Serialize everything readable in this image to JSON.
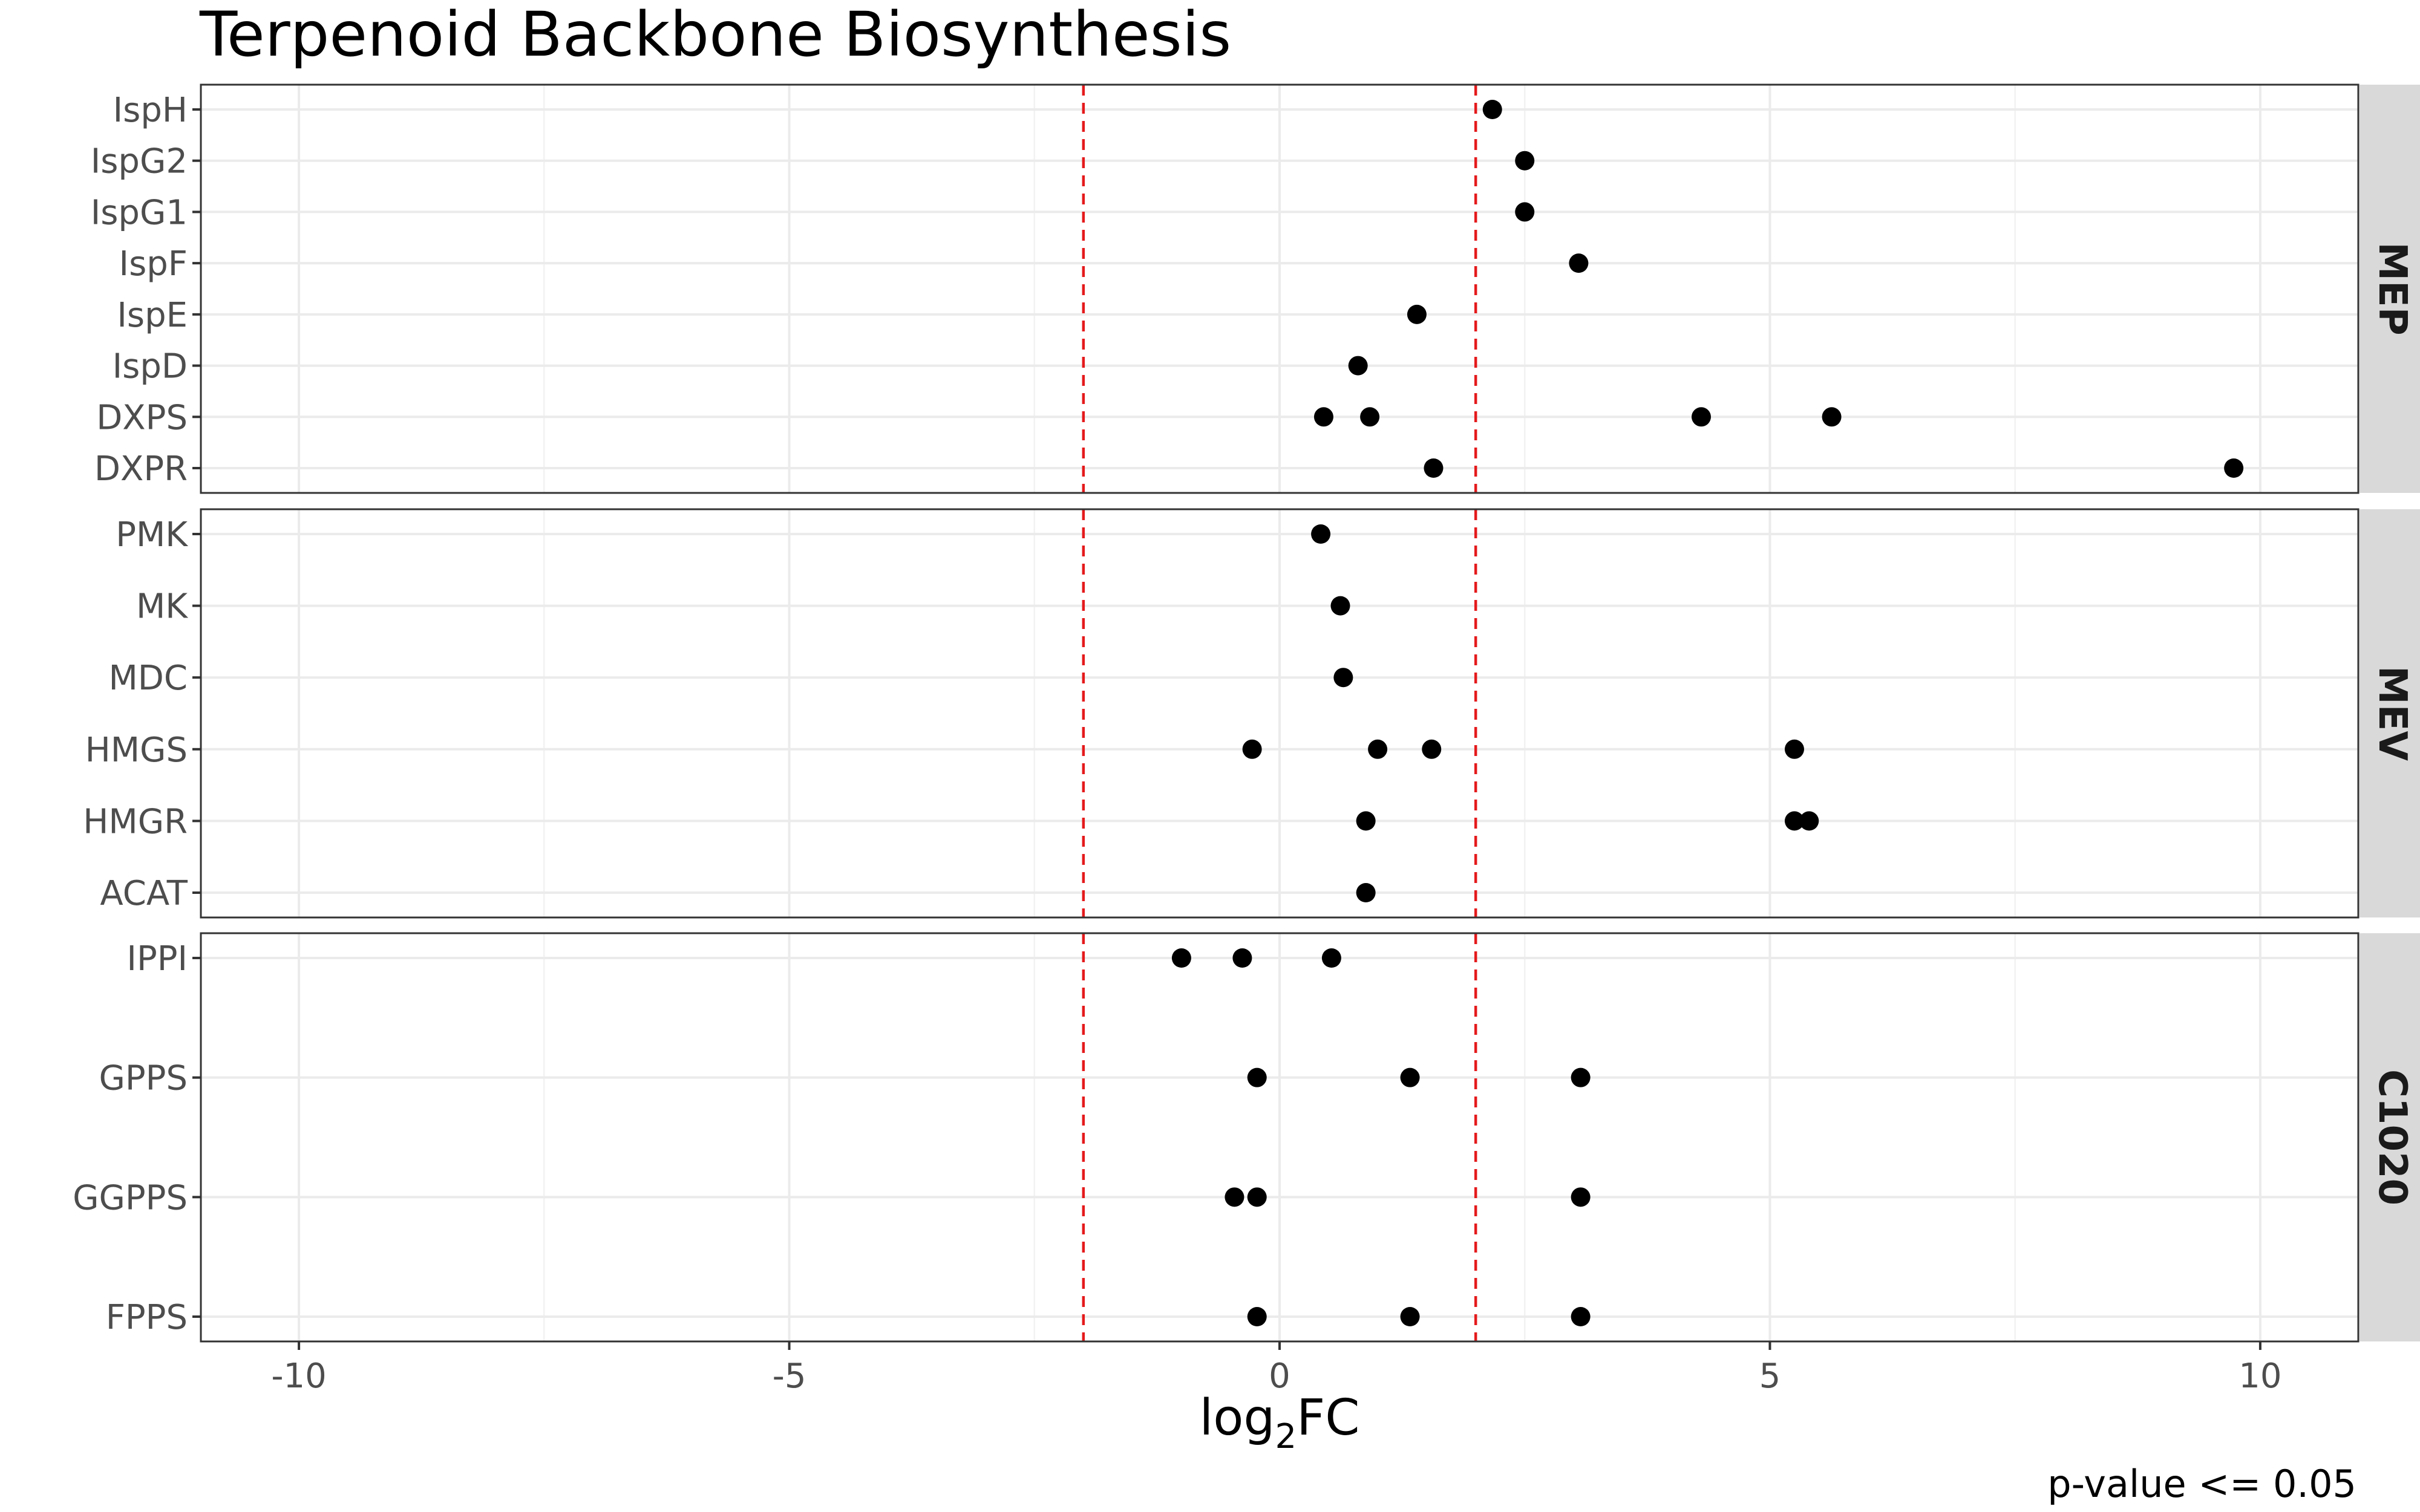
{
  "chart_data": {
    "type": "scatter",
    "title": "Terpenoid Backbone Biosynthesis",
    "xlabel": {
      "base": "log",
      "subscript": "2",
      "suffix": "FC"
    },
    "ylabel": "",
    "caption": "p-value <= 0.05",
    "xlim": [
      -11,
      11
    ],
    "x_ticks": [
      -10,
      -5,
      0,
      5,
      10
    ],
    "x_tick_labels": [
      "-10",
      "-5",
      "0",
      "5",
      "10"
    ],
    "reference_lines": {
      "x": [
        -2,
        2
      ],
      "color": "#e41a1c",
      "style": "dashed"
    },
    "grid": true,
    "point_color": "#000000",
    "strip_color": "#d9d9d9",
    "facet_direction": "rows",
    "panels": [
      {
        "name": "MEP",
        "categories": [
          "IspH",
          "IspG2",
          "IspG1",
          "IspF",
          "IspE",
          "IspD",
          "DXPS",
          "DXPR"
        ],
        "points": [
          {
            "y": "IspH",
            "x": 2.17
          },
          {
            "y": "IspG2",
            "x": 2.5
          },
          {
            "y": "IspG1",
            "x": 2.5
          },
          {
            "y": "IspF",
            "x": 3.05
          },
          {
            "y": "IspE",
            "x": 1.4
          },
          {
            "y": "IspD",
            "x": 0.8
          },
          {
            "y": "DXPS",
            "x": 0.45
          },
          {
            "y": "DXPS",
            "x": 0.92
          },
          {
            "y": "DXPS",
            "x": 4.3
          },
          {
            "y": "DXPS",
            "x": 5.63
          },
          {
            "y": "DXPR",
            "x": 1.57
          },
          {
            "y": "DXPR",
            "x": 9.73
          }
        ]
      },
      {
        "name": "MEV",
        "categories": [
          "PMK",
          "MK",
          "MDC",
          "HMGS",
          "HMGR",
          "ACAT"
        ],
        "points": [
          {
            "y": "PMK",
            "x": 0.42
          },
          {
            "y": "MK",
            "x": 0.62
          },
          {
            "y": "MDC",
            "x": 0.65
          },
          {
            "y": "HMGS",
            "x": -0.28
          },
          {
            "y": "HMGS",
            "x": 1.0
          },
          {
            "y": "HMGS",
            "x": 1.55
          },
          {
            "y": "HMGS",
            "x": 5.25
          },
          {
            "y": "HMGR",
            "x": 0.88
          },
          {
            "y": "HMGR",
            "x": 5.25
          },
          {
            "y": "HMGR",
            "x": 5.4
          },
          {
            "y": "ACAT",
            "x": 0.88
          }
        ]
      },
      {
        "name": "C1020",
        "categories": [
          "IPPI",
          "GPPS",
          "GGPPS",
          "FPPS"
        ],
        "points": [
          {
            "y": "IPPI",
            "x": -1.0
          },
          {
            "y": "IPPI",
            "x": -0.38
          },
          {
            "y": "IPPI",
            "x": 0.53
          },
          {
            "y": "GPPS",
            "x": -0.23
          },
          {
            "y": "GPPS",
            "x": 1.33
          },
          {
            "y": "GPPS",
            "x": 3.07
          },
          {
            "y": "GGPPS",
            "x": -0.46
          },
          {
            "y": "GGPPS",
            "x": -0.23
          },
          {
            "y": "GGPPS",
            "x": 3.07
          },
          {
            "y": "FPPS",
            "x": -0.23
          },
          {
            "y": "FPPS",
            "x": 1.33
          },
          {
            "y": "FPPS",
            "x": 3.07
          }
        ]
      }
    ]
  }
}
